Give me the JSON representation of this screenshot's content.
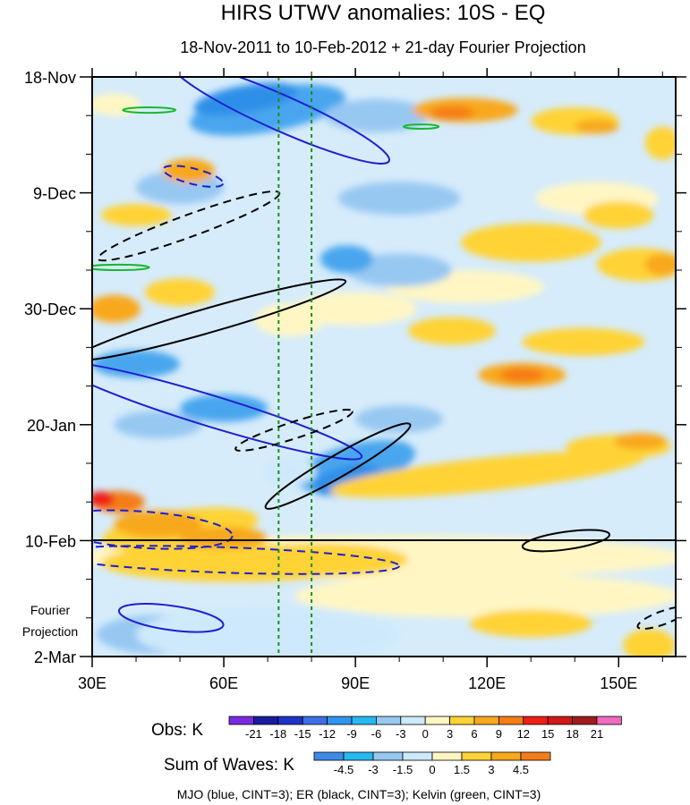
{
  "chart_data": {
    "type": "heatmap",
    "title": "HIRS UTWV anomalies: 10S - EQ",
    "subtitle": "18-Nov-2011 to 10-Feb-2012 + 21-day Fourier Projection",
    "x_ticks": [
      "30E",
      "60E",
      "90E",
      "120E",
      "150E"
    ],
    "x_tick_values": [
      30,
      60,
      90,
      120,
      150
    ],
    "xlim": [
      30,
      163
    ],
    "y_ticks": [
      "18-Nov",
      "9-Dec",
      "30-Dec",
      "20-Jan",
      "10-Feb",
      "2-Mar"
    ],
    "y_tick_days": [
      0,
      21,
      42,
      63,
      84,
      105
    ],
    "ylim_days": [
      0,
      105
    ],
    "fourier_label": [
      "Fourier",
      "Projection"
    ],
    "projection_start_day": 84,
    "reference_lines_lon": [
      72.5,
      80
    ],
    "obs_colorbar": {
      "label": "Obs: K",
      "levels": [
        "-21",
        "-18",
        "-15",
        "-12",
        "-9",
        "-6",
        "-3",
        "0",
        "3",
        "6",
        "9",
        "12",
        "15",
        "18",
        "21"
      ],
      "colors": [
        "#7a2be0",
        "#1a1aa0",
        "#1f33c8",
        "#3d6ee6",
        "#2f96ee",
        "#27b7f2",
        "#97c8f2",
        "#cde9fb",
        "#fff6c4",
        "#ffd335",
        "#f8a81c",
        "#f57d16",
        "#ee1f14",
        "#cf1818",
        "#9e1c1c",
        "#f06bbf"
      ]
    },
    "waves_colorbar": {
      "label": "Sum of Waves: K",
      "levels": [
        "-4.5",
        "-3",
        "-1.5",
        "0",
        "1.5",
        "3",
        "4.5"
      ],
      "colors": [
        "#3d8ae8",
        "#27b7f2",
        "#97c8f2",
        "#cde9fb",
        "#fff6c4",
        "#ffd335",
        "#f8a81c",
        "#f57d16"
      ]
    },
    "contours": [
      {
        "name": "MJO",
        "color": "#1f1fd0",
        "cint": 3
      },
      {
        "name": "ER",
        "color": "#000000",
        "cint": 3
      },
      {
        "name": "Kelvin",
        "color": "#16b82e",
        "cint": 3
      }
    ],
    "footer": "MJO (blue, CINT=3); ER (black, CINT=3); Kelvin (green, CINT=3)"
  }
}
